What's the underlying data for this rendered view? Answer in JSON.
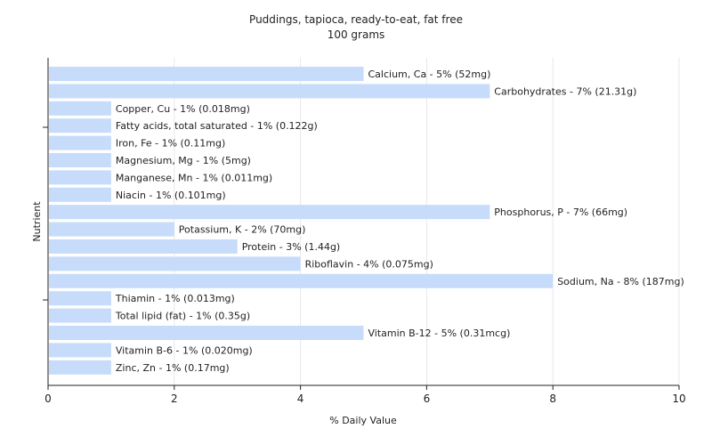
{
  "chart_data": {
    "type": "bar",
    "orientation": "horizontal",
    "title": "Puddings, tapioca, ready-to-eat, fat free",
    "subtitle": "100 grams",
    "xlabel": "% Daily Value",
    "ylabel": "Nutrient",
    "xlim": [
      0,
      10
    ],
    "xticks": [
      "0",
      "2",
      "4",
      "6",
      "8",
      "10"
    ],
    "grid": true,
    "bar_color": "#c6dcfa",
    "categories": [
      "Calcium, Ca",
      "Carbohydrates",
      "Copper, Cu",
      "Fatty acids, total saturated",
      "Iron, Fe",
      "Magnesium, Mg",
      "Manganese, Mn",
      "Niacin",
      "Phosphorus, P",
      "Potassium, K",
      "Protein",
      "Riboflavin",
      "Sodium, Na",
      "Thiamin",
      "Total lipid (fat)",
      "Vitamin B-12",
      "Vitamin B-6",
      "Zinc, Zn"
    ],
    "values": [
      5,
      7,
      1,
      1,
      1,
      1,
      1,
      1,
      7,
      2,
      3,
      4,
      8,
      1,
      1,
      5,
      1,
      1
    ],
    "labels": [
      "Calcium, Ca - 5% (52mg)",
      "Carbohydrates - 7% (21.31g)",
      "Copper, Cu - 1% (0.018mg)",
      "Fatty acids, total saturated - 1% (0.122g)",
      "Iron, Fe - 1% (0.11mg)",
      "Magnesium, Mg - 1% (5mg)",
      "Manganese, Mn - 1% (0.011mg)",
      "Niacin - 1% (0.101mg)",
      "Phosphorus, P - 7% (66mg)",
      "Potassium, K - 2% (70mg)",
      "Protein - 3% (1.44g)",
      "Riboflavin - 4% (0.075mg)",
      "Sodium, Na - 8% (187mg)",
      "Thiamin - 1% (0.013mg)",
      "Total lipid (fat) - 1% (0.35g)",
      "Vitamin B-12 - 5% (0.31mcg)",
      "Vitamin B-6 - 1% (0.020mg)",
      "Zinc, Zn - 1% (0.17mg)"
    ]
  }
}
